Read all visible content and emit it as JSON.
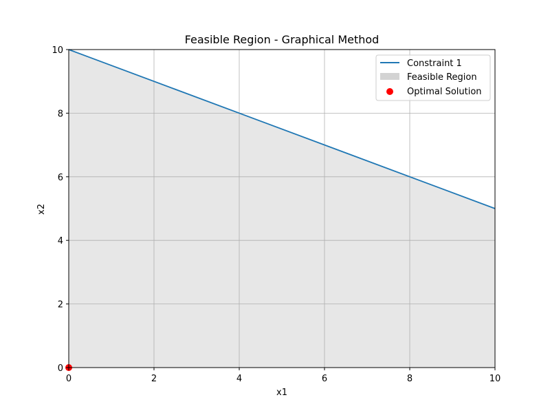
{
  "chart_data": {
    "type": "line",
    "title": "Feasible Region - Graphical Method",
    "xlabel": "x1",
    "ylabel": "x2",
    "xlim": [
      0,
      10
    ],
    "ylim": [
      0,
      10
    ],
    "xticks": [
      "0",
      "2",
      "4",
      "6",
      "8",
      "10"
    ],
    "yticks": [
      "0",
      "2",
      "4",
      "6",
      "8",
      "10"
    ],
    "grid": true,
    "legend_position": "upper-right",
    "series": [
      {
        "name": "Constraint 1",
        "kind": "line",
        "color": "#1f77b4",
        "x": [
          0,
          10
        ],
        "y": [
          10,
          5
        ]
      },
      {
        "name": "Feasible Region",
        "kind": "fill",
        "color": "#d3d3d3",
        "x": [
          0,
          10
        ],
        "y_upper": [
          10,
          5
        ],
        "y_lower": [
          0,
          0
        ]
      },
      {
        "name": "Optimal Solution",
        "kind": "scatter",
        "color": "#ff0000",
        "x": [
          0
        ],
        "y": [
          0
        ]
      }
    ]
  }
}
